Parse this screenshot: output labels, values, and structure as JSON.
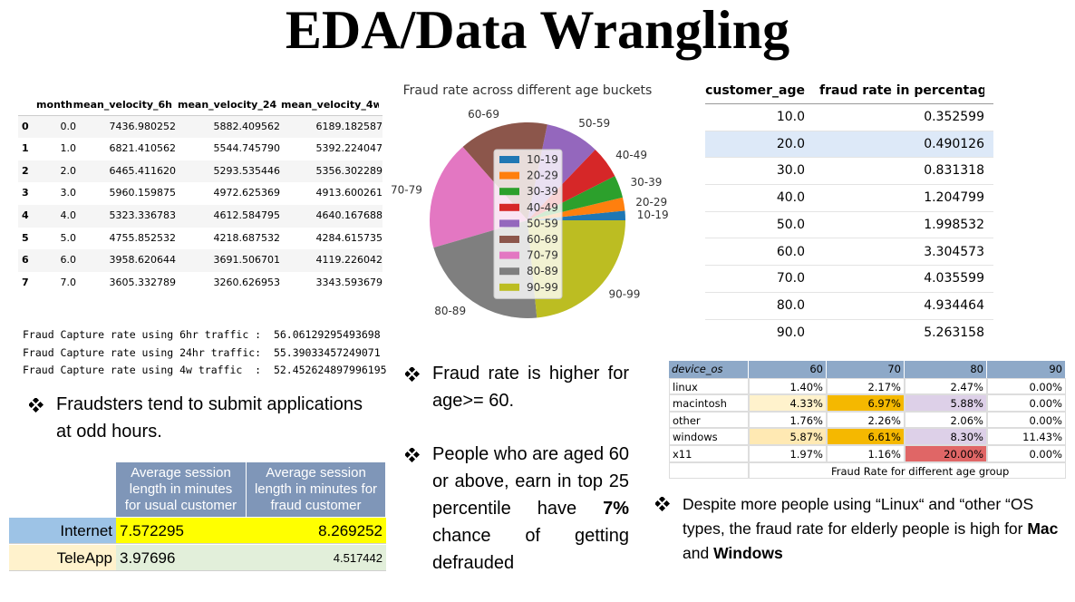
{
  "title": "EDA/Data Wrangling",
  "velocity_table": {
    "columns": [
      "month",
      "mean_velocity_6h",
      "mean_velocity_24h",
      "mean_velocity_4w"
    ],
    "rows": [
      [
        "0",
        "0.0",
        "7436.980252",
        "5882.409562",
        "6189.182587"
      ],
      [
        "1",
        "1.0",
        "6821.410562",
        "5544.745790",
        "5392.224047"
      ],
      [
        "2",
        "2.0",
        "6465.411620",
        "5293.535446",
        "5356.302289"
      ],
      [
        "3",
        "3.0",
        "5960.159875",
        "4972.625369",
        "4913.600261"
      ],
      [
        "4",
        "4.0",
        "5323.336783",
        "4612.584795",
        "4640.167688"
      ],
      [
        "5",
        "5.0",
        "4755.852532",
        "4218.687532",
        "4284.615735"
      ],
      [
        "6",
        "6.0",
        "3958.620644",
        "3691.506701",
        "4119.226042"
      ],
      [
        "7",
        "7.0",
        "3605.332789",
        "3260.626953",
        "3343.593679"
      ]
    ]
  },
  "capture_lines": [
    "Fraud Capture rate using 6hr traffic :  56.06129295493698",
    "Fraud Capture rate using 24hr traffic:  55.39033457249071",
    "Fraud Capture rate using 4w traffic  :  52.452624897996195"
  ],
  "bullet_left": "Fraudsters tend to submit applications at odd hours.",
  "session_table": {
    "headers": [
      "Average session length  in minutes for usual customer",
      "Average session length  in minutes for fraud customer"
    ],
    "rows": [
      [
        "Internet",
        "7.572295",
        "8.269252"
      ],
      [
        "TeleApp",
        "3.97696",
        "4.517442"
      ]
    ]
  },
  "chart_data": {
    "type": "pie",
    "title": "Fraud rate across different age buckets",
    "categories": [
      "10-19",
      "20-29",
      "30-39",
      "40-49",
      "50-59",
      "60-69",
      "70-79",
      "80-89",
      "90-99"
    ],
    "values": [
      0.352599,
      0.490126,
      0.831318,
      1.204799,
      1.998532,
      3.304573,
      4.035599,
      4.934464,
      5.263158
    ],
    "colors": [
      "#1f77b4",
      "#ff7f0e",
      "#2ca02c",
      "#d62728",
      "#9467bd",
      "#8c564b",
      "#e377c2",
      "#7f7f7f",
      "#bcbd22"
    ],
    "legend": "center"
  },
  "bullet_mid_1": "Fraud rate is higher for age>= 60.",
  "bullet_mid_2": {
    "before": "People who are aged 60 or above, earn in top 25 percentile have ",
    "bold": "7%",
    "after": " chance of getting defrauded"
  },
  "age_table": {
    "columns": [
      "customer_age",
      "fraud rate in percentage"
    ],
    "rows": [
      [
        "10.0",
        "0.352599"
      ],
      [
        "20.0",
        "0.490126"
      ],
      [
        "30.0",
        "0.831318"
      ],
      [
        "40.0",
        "1.204799"
      ],
      [
        "50.0",
        "1.998532"
      ],
      [
        "60.0",
        "3.304573"
      ],
      [
        "70.0",
        "4.035599"
      ],
      [
        "80.0",
        "4.934464"
      ],
      [
        "90.0",
        "5.263158"
      ]
    ]
  },
  "os_table": {
    "columns": [
      "device_os",
      "60",
      "70",
      "80",
      "90"
    ],
    "rows": [
      [
        "linux",
        "1.40%",
        "2.17%",
        "2.47%",
        "0.00%"
      ],
      [
        "macintosh",
        "4.33%",
        "6.97%",
        "5.88%",
        "0.00%"
      ],
      [
        "other",
        "1.76%",
        "2.26%",
        "2.06%",
        "0.00%"
      ],
      [
        "windows",
        "5.87%",
        "6.61%",
        "8.30%",
        "11.43%"
      ],
      [
        "x11",
        "1.97%",
        "1.16%",
        "20.00%",
        "0.00%"
      ]
    ],
    "caption": "Fraud Rate for different age group"
  },
  "bullet_right": {
    "before": "Despite more people using “Linux“ and “other “OS types, the fraud rate for elderly people is high for ",
    "bold1": "Mac",
    "mid": " and ",
    "bold2": "Windows"
  }
}
